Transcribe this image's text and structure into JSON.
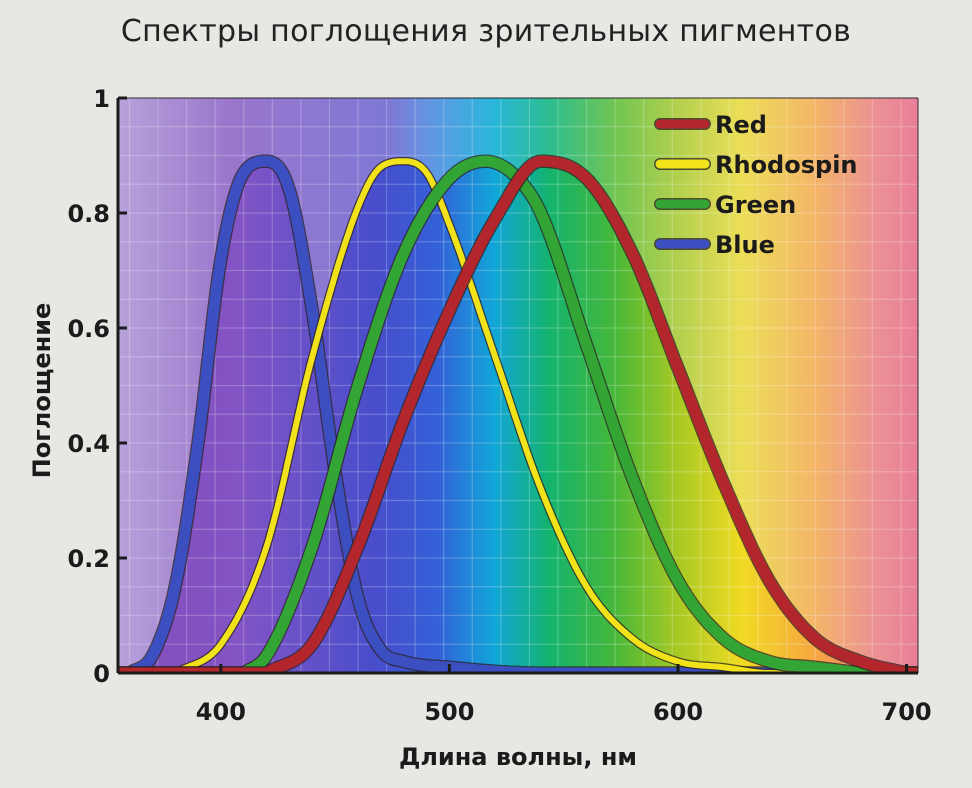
{
  "title": "Спектры поглощения зрительных пигментов",
  "chart_data": {
    "type": "line",
    "title": "Спектры поглощения зрительных пигментов",
    "xlabel": "Длина волны, нм",
    "ylabel": "Поглощение",
    "xlim": [
      355,
      705
    ],
    "ylim": [
      0,
      1
    ],
    "x_ticks": [
      400,
      500,
      600,
      700
    ],
    "y_ticks": [
      0,
      0.2,
      0.4,
      0.6,
      0.8,
      1
    ],
    "y_tick_labels": [
      "0",
      "0.2",
      "0.4",
      "0.6",
      "0.8",
      "1"
    ],
    "grid": true,
    "background": "visible light spectrum",
    "legend_position": "top-right",
    "series": [
      {
        "name": "Red",
        "color": "#b3262c",
        "peak_x": 543,
        "peak_y": 0.89,
        "x": [
          420,
          440,
          460,
          480,
          500,
          520,
          540,
          560,
          580,
          600,
          620,
          640,
          660,
          680,
          700
        ],
        "y": [
          0.0,
          0.05,
          0.22,
          0.44,
          0.63,
          0.79,
          0.89,
          0.86,
          0.73,
          0.53,
          0.33,
          0.16,
          0.06,
          0.02,
          0.0
        ]
      },
      {
        "name": "Rhodospin",
        "color": "#f2e21a",
        "peak_x": 482,
        "peak_y": 0.89,
        "x": [
          380,
          400,
          420,
          440,
          460,
          470,
          480,
          490,
          500,
          520,
          540,
          560,
          580,
          600,
          620,
          640,
          660
        ],
        "y": [
          0.0,
          0.05,
          0.22,
          0.55,
          0.81,
          0.88,
          0.89,
          0.87,
          0.78,
          0.55,
          0.32,
          0.15,
          0.06,
          0.02,
          0.01,
          0.0,
          0.0
        ]
      },
      {
        "name": "Green",
        "color": "#33a535",
        "peak_x": 516,
        "peak_y": 0.89,
        "x": [
          410,
          420,
          440,
          460,
          480,
          500,
          516,
          530,
          540,
          560,
          580,
          600,
          620,
          640,
          660,
          680
        ],
        "y": [
          0.0,
          0.03,
          0.22,
          0.5,
          0.73,
          0.86,
          0.89,
          0.86,
          0.8,
          0.57,
          0.34,
          0.16,
          0.06,
          0.02,
          0.01,
          0.0
        ]
      },
      {
        "name": "Blue",
        "color": "#3c4fc0",
        "peak_x": 420,
        "peak_y": 0.89,
        "x": [
          360,
          370,
          380,
          390,
          400,
          410,
          420,
          430,
          440,
          450,
          460,
          470,
          480,
          500,
          540,
          600,
          650
        ],
        "y": [
          0.0,
          0.03,
          0.15,
          0.4,
          0.72,
          0.87,
          0.89,
          0.84,
          0.63,
          0.35,
          0.13,
          0.04,
          0.02,
          0.01,
          0.0,
          0.0,
          0.0
        ]
      }
    ]
  }
}
